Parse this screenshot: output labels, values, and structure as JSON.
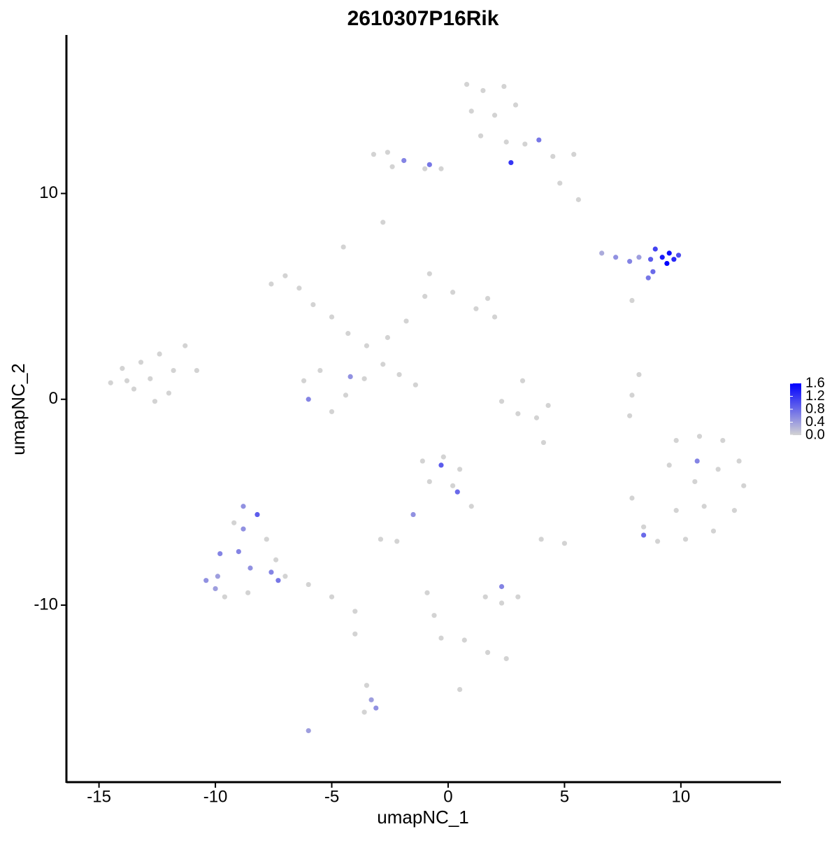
{
  "chart_data": {
    "type": "scatter",
    "title": "2610307P16Rik",
    "x_label": "umapNC_1",
    "y_label": "umapNC_2",
    "xlim": [
      -16.4,
      14.3
    ],
    "ylim": [
      -18.6,
      17.7
    ],
    "xticks": [
      -15,
      -10,
      -5,
      0,
      5,
      10
    ],
    "yticks": [
      -10,
      0,
      10
    ],
    "x": [
      -14.5,
      -14.0,
      -13.5,
      -13.2,
      -12.8,
      -12.4,
      -12.0,
      -11.8,
      -11.3,
      -13.8,
      -12.6,
      -10.8,
      0.8,
      1.5,
      2.4,
      1.0,
      2.0,
      2.9,
      1.4,
      2.5,
      3.3,
      4.5,
      5.4,
      4.8,
      5.6,
      -0.3,
      2.7,
      3.9,
      -3.2,
      -2.6,
      -1.9,
      -1.0,
      -2.4,
      -0.8,
      -2.8,
      -4.5,
      -7.6,
      -7.0,
      -6.4,
      -5.8,
      -5.0,
      -4.3,
      -3.5,
      -2.6,
      -1.8,
      -1.0,
      -0.8,
      0.2,
      1.2,
      2.0,
      1.7,
      -6.2,
      -5.5,
      -4.4,
      -3.6,
      -5.0,
      -4.2,
      -6.0,
      -2.8,
      -2.1,
      -1.4,
      6.6,
      7.2,
      7.8,
      8.2,
      8.7,
      8.9,
      9.2,
      9.4,
      9.7,
      9.9,
      9.5,
      8.8,
      8.6,
      7.9,
      8.2,
      7.9,
      7.8,
      2.3,
      3.0,
      3.8,
      4.3,
      3.2,
      9.8,
      10.8,
      11.8,
      12.5,
      12.7,
      12.3,
      11.4,
      10.2,
      9.0,
      8.4,
      7.9,
      9.5,
      10.6,
      11.6,
      11.0,
      9.8,
      10.7,
      8.4,
      -1.1,
      -0.2,
      0.5,
      -0.8,
      0.2,
      1.0,
      -0.3,
      0.4,
      -2.9,
      -2.2,
      -1.5,
      -10.4,
      -9.8,
      -9.2,
      -8.8,
      -8.2,
      -7.8,
      -7.4,
      -7.0,
      -6.0,
      -5.0,
      -4.0,
      -9.6,
      -8.6,
      -9.0,
      -8.5,
      -7.6,
      -9.9,
      -8.8,
      -10.0,
      -7.3,
      1.6,
      2.3,
      3.0,
      2.3,
      -0.9,
      -0.6,
      -0.3,
      0.7,
      1.7,
      2.5,
      -3.5,
      -3.3,
      -3.1,
      -3.6,
      -6.0,
      0.5,
      5.0,
      4.0,
      -4.0,
      4.1
    ],
    "y": [
      0.8,
      1.5,
      0.5,
      1.8,
      1.0,
      2.2,
      0.3,
      1.4,
      2.6,
      0.9,
      -0.1,
      1.4,
      15.3,
      15.0,
      15.2,
      14.0,
      13.8,
      14.3,
      12.8,
      12.5,
      12.4,
      11.8,
      11.9,
      10.5,
      9.7,
      11.2,
      11.5,
      12.6,
      11.9,
      12.0,
      11.6,
      11.2,
      11.3,
      11.4,
      8.6,
      7.4,
      5.6,
      6.0,
      5.4,
      4.6,
      4.0,
      3.2,
      2.6,
      3.0,
      3.8,
      5.0,
      6.1,
      5.2,
      4.4,
      4.0,
      4.9,
      0.9,
      1.4,
      0.2,
      1.0,
      -0.6,
      1.1,
      0.0,
      1.7,
      1.2,
      0.7,
      7.1,
      6.9,
      6.7,
      6.9,
      6.8,
      7.3,
      6.9,
      6.6,
      6.8,
      7.0,
      7.1,
      6.2,
      5.9,
      4.8,
      1.2,
      0.2,
      -0.8,
      -0.1,
      -0.7,
      -0.9,
      -0.3,
      0.9,
      -2.0,
      -1.8,
      -2.0,
      -3.0,
      -4.2,
      -5.4,
      -6.4,
      -6.8,
      -6.9,
      -6.2,
      -4.8,
      -3.2,
      -4.0,
      -3.4,
      -5.2,
      -5.4,
      -3.0,
      -6.6,
      -3.0,
      -2.8,
      -3.4,
      -4.0,
      -4.2,
      -5.2,
      -3.2,
      -4.5,
      -6.8,
      -6.9,
      -5.6,
      -8.8,
      -7.5,
      -6.0,
      -5.2,
      -5.6,
      -6.8,
      -7.8,
      -8.6,
      -9.0,
      -9.6,
      -10.3,
      -9.6,
      -9.4,
      -7.4,
      -8.2,
      -8.4,
      -8.6,
      -6.3,
      -9.2,
      -8.8,
      -9.6,
      -9.9,
      -9.6,
      -9.1,
      -9.4,
      -10.5,
      -11.6,
      -11.7,
      -12.3,
      -12.6,
      -13.9,
      -14.6,
      -15.0,
      -15.2,
      -16.1,
      -14.1,
      -7.0,
      -6.8,
      -11.4,
      -2.1
    ],
    "expression": [
      0,
      0,
      0,
      0,
      0,
      0,
      0,
      0,
      0,
      0,
      0,
      0,
      0,
      0,
      0,
      0,
      0,
      0,
      0,
      0,
      0,
      0,
      0,
      0,
      0,
      0,
      1.2,
      0.7,
      0,
      0,
      0.6,
      0,
      0,
      0.7,
      0,
      0,
      0,
      0,
      0,
      0,
      0,
      0,
      0,
      0,
      0,
      0,
      0,
      0,
      0,
      0,
      0,
      0,
      0,
      0,
      0,
      0,
      0.5,
      0.6,
      0,
      0,
      0,
      0.3,
      0.5,
      0.6,
      0.4,
      0.9,
      1.1,
      1.4,
      1.6,
      1.3,
      1.0,
      1.5,
      0.8,
      0.7,
      0,
      0,
      0,
      0,
      0,
      0,
      0,
      0,
      0,
      0,
      0,
      0,
      0,
      0,
      0,
      0,
      0,
      0,
      0,
      0,
      0,
      0,
      0,
      0,
      0,
      0.6,
      0.8,
      0,
      0,
      0,
      0,
      0,
      0,
      0.9,
      0.8,
      0,
      0,
      0.5,
      0.5,
      0.6,
      0,
      0.5,
      0.9,
      0,
      0,
      0,
      0,
      0,
      0,
      0,
      0,
      0.6,
      0.5,
      0.6,
      0.4,
      0.5,
      0.4,
      0.7,
      0,
      0,
      0,
      0.6,
      0,
      0,
      0,
      0,
      0,
      0,
      0,
      0.4,
      0.5,
      0,
      0.4,
      0,
      0,
      0,
      0,
      0
    ],
    "colorbar": {
      "lim": [
        0,
        1.6
      ],
      "ticks": [
        {
          "value": 0,
          "label": "0.0"
        },
        0.4,
        0.8,
        1.2,
        1.6
      ],
      "low_color": "#d3d3d3",
      "high_color": "#0000ff"
    }
  }
}
